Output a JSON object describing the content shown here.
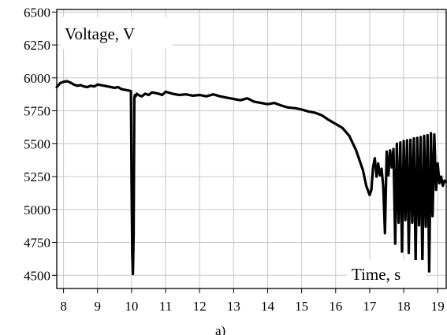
{
  "chart_data": {
    "type": "line",
    "ylabel": "Voltage, V",
    "xlabel": "Time, s",
    "caption": "a)",
    "xlim": [
      7.8,
      19.25
    ],
    "ylim": [
      4400,
      6520
    ],
    "xticks": [
      8,
      9,
      10,
      11,
      12,
      13,
      14,
      15,
      16,
      17,
      18,
      19
    ],
    "yticks": [
      4500,
      4750,
      5000,
      5250,
      5500,
      5750,
      6000,
      6250,
      6500
    ],
    "grid": true,
    "line_color": "#000000",
    "series": [
      {
        "x": [
          7.8,
          7.9,
          8.0,
          8.1,
          8.2,
          8.3,
          8.4,
          8.5,
          8.6,
          8.7,
          8.8,
          8.9,
          9.0,
          9.1,
          9.2,
          9.3,
          9.4,
          9.5,
          9.6,
          9.7,
          9.8,
          9.9,
          9.98,
          10.0,
          10.02,
          10.04,
          10.06,
          10.08,
          10.1,
          10.12,
          10.15,
          10.2,
          10.3,
          10.4,
          10.5,
          10.6,
          10.7,
          10.8,
          10.9,
          11.0,
          11.2,
          11.4,
          11.6,
          11.8,
          12.0,
          12.2,
          12.4,
          12.6,
          12.8,
          13.0,
          13.2,
          13.4,
          13.6,
          13.8,
          14.0,
          14.2,
          14.4,
          14.6,
          14.8,
          15.0,
          15.2,
          15.4,
          15.6,
          15.8,
          16.0,
          16.2,
          16.4,
          16.6,
          16.8,
          16.9,
          17.0,
          17.05,
          17.1,
          17.15,
          17.2,
          17.25,
          17.3,
          17.35,
          17.4,
          17.45,
          17.5,
          17.55,
          17.6,
          17.65,
          17.7,
          17.75,
          17.8,
          17.85,
          17.9,
          17.95,
          18.0,
          18.05,
          18.1,
          18.15,
          18.2,
          18.25,
          18.3,
          18.35,
          18.4,
          18.45,
          18.5,
          18.55,
          18.6,
          18.65,
          18.7,
          18.75,
          18.8,
          18.85,
          18.9,
          18.95,
          19.0,
          19.05,
          19.1,
          19.15,
          19.2,
          19.25
        ],
        "y": [
          5930,
          5960,
          5970,
          5975,
          5965,
          5950,
          5940,
          5945,
          5935,
          5930,
          5940,
          5935,
          5950,
          5945,
          5940,
          5935,
          5930,
          5925,
          5930,
          5915,
          5910,
          5905,
          5900,
          5200,
          4650,
          4510,
          4800,
          5850,
          5870,
          5860,
          5880,
          5870,
          5860,
          5880,
          5870,
          5890,
          5885,
          5880,
          5870,
          5895,
          5880,
          5870,
          5875,
          5865,
          5870,
          5860,
          5875,
          5860,
          5850,
          5840,
          5830,
          5845,
          5820,
          5810,
          5800,
          5810,
          5790,
          5775,
          5770,
          5760,
          5745,
          5735,
          5715,
          5680,
          5650,
          5620,
          5560,
          5450,
          5300,
          5180,
          5110,
          5150,
          5320,
          5390,
          5250,
          5350,
          5260,
          5310,
          5170,
          4820,
          5440,
          5260,
          5450,
          5320,
          5460,
          4740,
          5500,
          4900,
          5510,
          4680,
          5520,
          4920,
          5525,
          4670,
          5530,
          4900,
          5540,
          4600,
          5545,
          4880,
          5550,
          4570,
          5560,
          4870,
          5565,
          4530,
          5580,
          4950,
          5570,
          5150,
          5350,
          5200,
          5250,
          5180,
          5220,
          5210
        ]
      }
    ]
  }
}
